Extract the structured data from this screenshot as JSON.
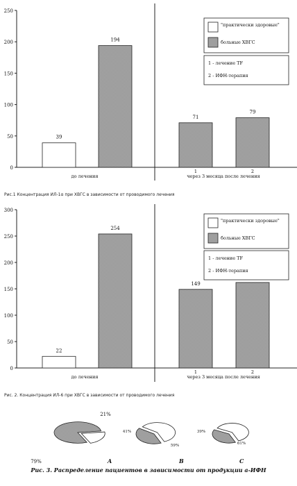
{
  "chart_data": [
    {
      "type": "bar",
      "ylim": [
        0,
        250
      ],
      "yticks": [
        "0",
        "50",
        "100",
        "150",
        "200",
        "250"
      ],
      "groups": [
        {
          "label": "до лечения",
          "sublabels": []
        },
        {
          "label": "через 3 месяца после лечения",
          "sublabels": [
            "1",
            "2"
          ]
        }
      ],
      "bars": [
        {
          "series": "\"практически здоровые\"",
          "group": 0,
          "value": 39
        },
        {
          "series": "больные ХВГС",
          "group": 0,
          "value": 194
        },
        {
          "series": "больные ХВГС",
          "group": 1,
          "value": 71
        },
        {
          "series": "больные ХВГС",
          "group": 1,
          "value": 79
        }
      ],
      "legend": [
        "\"практически здоровые\"",
        "больные ХВГС"
      ],
      "notes": [
        "1 - лечение TF",
        "2 - ИФН-терапия"
      ],
      "caption": "Рис.1 Концентрация ИЛ-1α при ХВГС в зависимости от проводимого лечения"
    },
    {
      "type": "bar",
      "ylim": [
        0,
        300
      ],
      "yticks": [
        "0",
        "50",
        "100",
        "150",
        "200",
        "250",
        "300"
      ],
      "groups": [
        {
          "label": "до лечения",
          "sublabels": []
        },
        {
          "label": "через 3 месяца после лечения",
          "sublabels": [
            "1",
            "2"
          ]
        }
      ],
      "bars": [
        {
          "series": "\"практически здоровые\"",
          "group": 0,
          "value": 22
        },
        {
          "series": "больные ХВГС",
          "group": 0,
          "value": 254
        },
        {
          "series": "больные ХВГС",
          "group": 1,
          "value": 149
        },
        {
          "series": "больные ХВГС",
          "group": 1,
          "value": 162
        }
      ],
      "legend": [
        "\"практически здоровые\"",
        "больные ХВГС"
      ],
      "notes": [
        "1 - лечение TF",
        "2 - ИФН-терапия"
      ],
      "caption": "Рис. 2. Концентрация ИЛ-6 при ХВГС в зависимости от проводимого лечения"
    },
    {
      "type": "pie",
      "pies": [
        {
          "label": "A",
          "slices": [
            {
              "value": 79,
              "text": "79%"
            },
            {
              "value": 21,
              "text": "21%"
            }
          ]
        },
        {
          "label": "B",
          "slices": [
            {
              "value": 41,
              "text": "41%"
            },
            {
              "value": 59,
              "text": "59%"
            }
          ]
        },
        {
          "label": "C",
          "slices": [
            {
              "value": 39,
              "text": "39%"
            },
            {
              "value": 61,
              "text": "61%"
            }
          ]
        }
      ],
      "caption": "Рис. 3. Распределение пациентов в зависимости от продукции а-ИФН"
    }
  ],
  "colors": {
    "healthy_fill": "#ffffff",
    "patient_fill": "#b4b4b4",
    "axis": "#222222"
  }
}
